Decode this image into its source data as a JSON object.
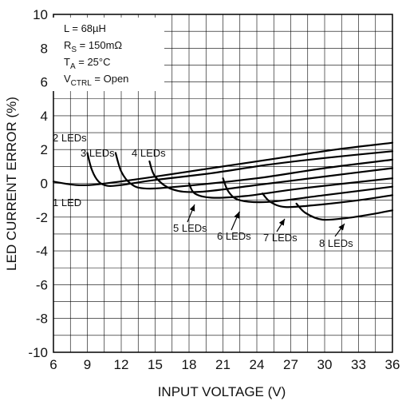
{
  "chart_data": {
    "type": "line",
    "title": "",
    "xlabel": "INPUT VOLTAGE (V)",
    "ylabel": "LED CURRENT ERROR (%)",
    "xlim": [
      6,
      36
    ],
    "ylim": [
      -10,
      10
    ],
    "x_ticks": [
      "6",
      "9",
      "12",
      "15",
      "18",
      "21",
      "24",
      "27",
      "30",
      "33",
      "36"
    ],
    "y_ticks": [
      "10",
      "8",
      "6",
      "4",
      "2",
      "0",
      "-2",
      "-4",
      "-6",
      "-8",
      "-10"
    ],
    "grid": true,
    "conditions": {
      "inductance": {
        "label": "L = 68µH"
      },
      "sense": {
        "main": "R",
        "sub": "S",
        "rest": " = 150mΩ"
      },
      "temp": {
        "main": "T",
        "sub": "A",
        "rest": " = 25°C"
      },
      "ctrl": {
        "main": "V",
        "sub": "CTRL",
        "rest": " = Open"
      }
    },
    "series": [
      {
        "name": "1 LED",
        "label": "1 LED",
        "points": [
          [
            6,
            0.1
          ],
          [
            8,
            -0.1
          ],
          [
            10,
            -0.05
          ],
          [
            14,
            0.3
          ],
          [
            20,
            0.9
          ],
          [
            26,
            1.5
          ],
          [
            31,
            2.0
          ],
          [
            36,
            2.4
          ]
        ]
      },
      {
        "name": "2 LEDs",
        "label": "2 LEDs",
        "points": [
          [
            9,
            1.8
          ],
          [
            9.4,
            0.8
          ],
          [
            10,
            0.1
          ],
          [
            10.8,
            -0.15
          ],
          [
            12,
            -0.1
          ],
          [
            15,
            0.2
          ],
          [
            20,
            0.6
          ],
          [
            25,
            1.1
          ],
          [
            30,
            1.5
          ],
          [
            36,
            1.9
          ]
        ]
      },
      {
        "name": "3 LEDs",
        "label": "3 LEDs",
        "points": [
          [
            11.5,
            1.8
          ],
          [
            12,
            0.7
          ],
          [
            12.8,
            0.0
          ],
          [
            14,
            -0.3
          ],
          [
            17,
            -0.2
          ],
          [
            24,
            0.3
          ],
          [
            30,
            0.9
          ],
          [
            36,
            1.4
          ]
        ]
      },
      {
        "name": "4 LEDs",
        "label": "4 LEDs",
        "points": [
          [
            14.5,
            1.3
          ],
          [
            15,
            0.4
          ],
          [
            16.5,
            -0.35
          ],
          [
            19,
            -0.5
          ],
          [
            24,
            -0.1
          ],
          [
            30,
            0.4
          ],
          [
            36,
            0.9
          ]
        ]
      },
      {
        "name": "5 LEDs",
        "label": "5 LEDs",
        "points": [
          [
            18,
            0.0
          ],
          [
            18.5,
            -0.6
          ],
          [
            20,
            -0.85
          ],
          [
            23,
            -0.75
          ],
          [
            28,
            -0.3
          ],
          [
            36,
            0.3
          ]
        ]
      },
      {
        "name": "6 LEDs",
        "label": "6 LEDs",
        "points": [
          [
            21,
            0.3
          ],
          [
            21.5,
            -0.5
          ],
          [
            22.5,
            -1.0
          ],
          [
            25,
            -1.1
          ],
          [
            30,
            -0.7
          ],
          [
            36,
            -0.2
          ]
        ]
      },
      {
        "name": "7 LEDs",
        "label": "7 LEDs",
        "points": [
          [
            24.5,
            -0.6
          ],
          [
            25.2,
            -1.1
          ],
          [
            26.5,
            -1.4
          ],
          [
            29,
            -1.3
          ],
          [
            33,
            -1.0
          ],
          [
            36,
            -0.7
          ]
        ]
      },
      {
        "name": "8 LEDs",
        "label": "8 LEDs",
        "points": [
          [
            27.5,
            -1.2
          ],
          [
            28.3,
            -1.75
          ],
          [
            29.8,
            -2.15
          ],
          [
            32,
            -2.05
          ],
          [
            34,
            -1.85
          ],
          [
            36,
            -1.6
          ]
        ]
      }
    ]
  }
}
